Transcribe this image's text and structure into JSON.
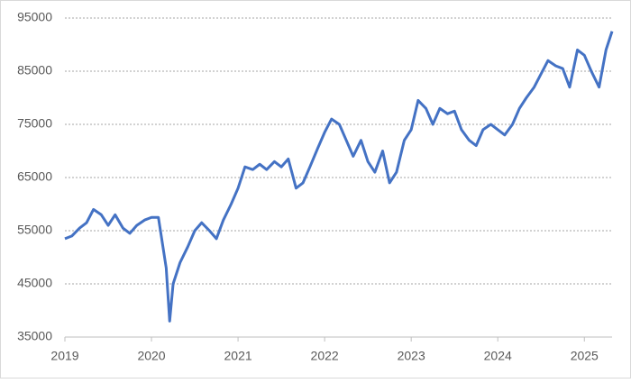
{
  "chart_data": {
    "type": "line",
    "x": [
      2019.0,
      2019.08,
      2019.17,
      2019.25,
      2019.33,
      2019.42,
      2019.5,
      2019.58,
      2019.67,
      2019.75,
      2019.83,
      2019.92,
      2020.0,
      2020.08,
      2020.17,
      2020.21,
      2020.25,
      2020.33,
      2020.42,
      2020.5,
      2020.58,
      2020.67,
      2020.75,
      2020.83,
      2020.92,
      2021.0,
      2021.08,
      2021.17,
      2021.25,
      2021.33,
      2021.42,
      2021.5,
      2021.58,
      2021.67,
      2021.75,
      2021.83,
      2021.92,
      2022.0,
      2022.08,
      2022.17,
      2022.25,
      2022.33,
      2022.42,
      2022.5,
      2022.58,
      2022.67,
      2022.75,
      2022.83,
      2022.92,
      2023.0,
      2023.08,
      2023.17,
      2023.25,
      2023.33,
      2023.42,
      2023.5,
      2023.58,
      2023.67,
      2023.75,
      2023.83,
      2023.92,
      2024.0,
      2024.08,
      2024.17,
      2024.25,
      2024.33,
      2024.42,
      2024.5,
      2024.58,
      2024.67,
      2024.75,
      2024.83,
      2024.92,
      2025.0,
      2025.08,
      2025.17,
      2025.25,
      2025.32
    ],
    "series": [
      {
        "color": "#4472c4",
        "values": [
          53500,
          54000,
          55500,
          56500,
          59000,
          58000,
          56000,
          58000,
          55500,
          54500,
          56000,
          57000,
          57500,
          57500,
          48000,
          38000,
          45000,
          49000,
          52000,
          55000,
          56500,
          55000,
          53500,
          57000,
          60000,
          63000,
          67000,
          66500,
          67500,
          66500,
          68000,
          67000,
          68500,
          63000,
          64000,
          67000,
          70500,
          73500,
          76000,
          75000,
          72000,
          69000,
          72000,
          68000,
          66000,
          70000,
          64000,
          66000,
          72000,
          74000,
          79500,
          78000,
          75000,
          78000,
          77000,
          77500,
          74000,
          72000,
          71000,
          74000,
          75000,
          74000,
          73000,
          75000,
          78000,
          80000,
          82000,
          84500,
          87000,
          86000,
          85500,
          82000,
          89000,
          88000,
          85000,
          82000,
          89000,
          92500
        ]
      }
    ],
    "xlim": [
      2019,
      2025.32
    ],
    "xticks": [
      2019,
      2020,
      2021,
      2022,
      2023,
      2024,
      2025
    ],
    "ylim": [
      35000,
      95000
    ],
    "yticks": [
      35000,
      45000,
      55000,
      65000,
      75000,
      85000,
      95000
    ],
    "grid": true
  }
}
